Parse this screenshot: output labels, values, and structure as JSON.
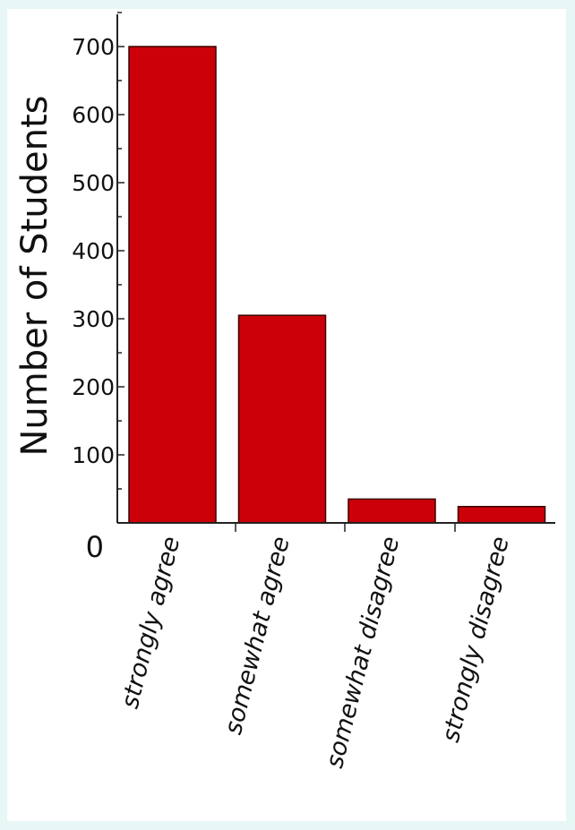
{
  "chart_data": {
    "type": "bar",
    "ylabel": "Number of Students",
    "categories": [
      "strongly agree",
      "somewhat agree",
      "somewhat disagree",
      "strongly disagree"
    ],
    "values": [
      700,
      305,
      35,
      24
    ],
    "ylim": [
      0,
      750
    ],
    "yticks": [
      0,
      100,
      200,
      300,
      400,
      500,
      600,
      700
    ],
    "grid": false,
    "legend": "none",
    "colors": {
      "bar": "#cc0008",
      "bar_stroke": "#3a0000",
      "axis": "#222222"
    }
  }
}
